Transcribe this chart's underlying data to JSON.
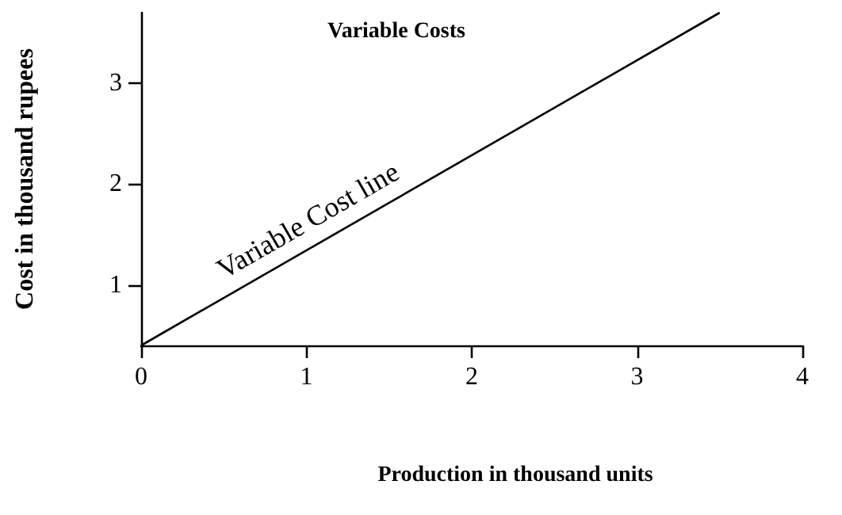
{
  "chart_data": {
    "type": "line",
    "title": "Variable Costs",
    "xlabel": "Production in thousand units",
    "ylabel": "Cost in thousand rupees",
    "x": [
      0,
      3.5
    ],
    "series": [
      {
        "color": "#000000",
        "values": [
          0.4,
          3.7
        ]
      }
    ],
    "xlim": [
      0,
      4
    ],
    "xticks": [
      0,
      1,
      2,
      3,
      4
    ],
    "ylim": [
      0.4,
      3.7
    ],
    "yticks": [
      1,
      2,
      3
    ],
    "annotations": [
      "Variable Cost line"
    ],
    "grid": false,
    "marker": "none",
    "line_style": "solid"
  }
}
